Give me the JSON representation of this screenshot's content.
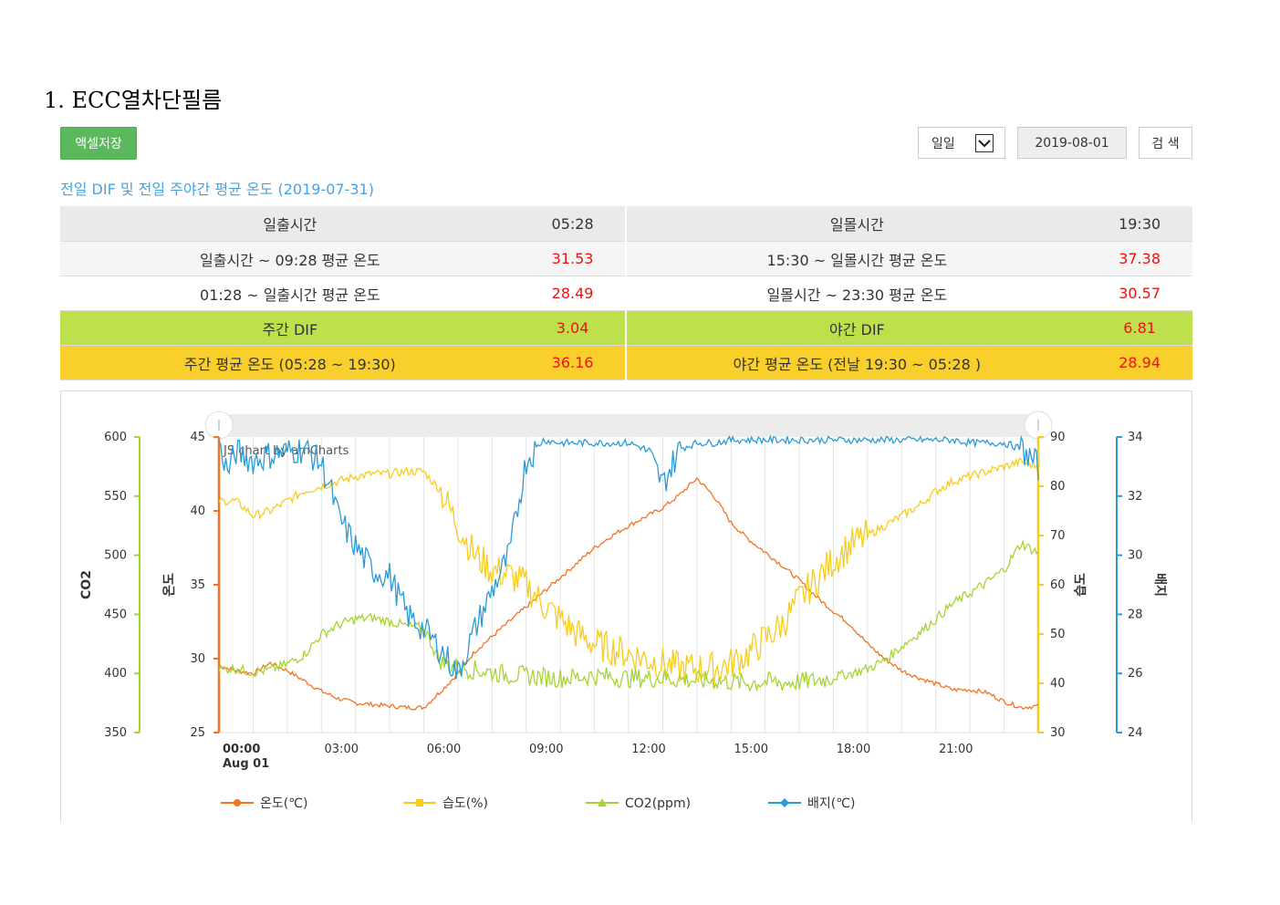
{
  "heading": "1.  ECC열차단필름",
  "toolbar": {
    "excel_label": "액셀저장",
    "period_value": "일일",
    "date_value": "2019-08-01",
    "search_label": "검 색"
  },
  "subtitle": "전일 DIF 및 전일 주야간 평균 온도 (2019-07-31)",
  "summary": {
    "rows": [
      {
        "l1": "일출시간",
        "v1": "05:28",
        "l2": "일몰시간",
        "v2": "19:30"
      },
      {
        "l1": "일출시간 ~ 09:28 평균 온도",
        "v1": "31.53",
        "l2": "15:30 ~ 일몰시간 평균 온도",
        "v2": "37.38"
      },
      {
        "l1": "01:28 ~ 일출시간 평균 온도",
        "v1": "28.49",
        "l2": "일몰시간 ~ 23:30 평균 온도",
        "v2": "30.57"
      },
      {
        "l1": "주간 DIF",
        "v1": "3.04",
        "l2": "야간 DIF",
        "v2": "6.81"
      },
      {
        "l1": "주간 평균 온도 (05:28 ~ 19:30)",
        "v1": "36.16",
        "l2": "야간 평균 온도 (전날 19:30 ~ 05:28 )",
        "v2": "28.94"
      }
    ]
  },
  "colors": {
    "temp": "#f47321",
    "humidity": "#f8cc1b",
    "co2": "#a6d430",
    "media": "#2a9bd6",
    "accent": "#4aa3df",
    "excel_button": "#5cb85c"
  },
  "chart_data": {
    "type": "line",
    "watermark": "JS chart by amCharts",
    "x_ticks": [
      "00:00",
      "03:00",
      "06:00",
      "09:00",
      "12:00",
      "15:00",
      "18:00",
      "21:00"
    ],
    "x_date_label": "Aug 01",
    "axes": {
      "co2": {
        "label": "CO2",
        "range": [
          350,
          600
        ],
        "ticks": [
          "600",
          "550",
          "500",
          "450",
          "400",
          "350"
        ]
      },
      "temp": {
        "label": "온도",
        "range": [
          25,
          45
        ],
        "ticks": [
          "45",
          "40",
          "35",
          "30",
          "25"
        ]
      },
      "humidity": {
        "label": "습도",
        "range": [
          30,
          90
        ],
        "ticks": [
          "90",
          "80",
          "70",
          "60",
          "50",
          "40",
          "30"
        ]
      },
      "media": {
        "label": "배지",
        "range": [
          24,
          34
        ],
        "ticks": [
          "34",
          "32",
          "30",
          "28",
          "26",
          "24"
        ]
      }
    },
    "series": [
      {
        "name": "온도(℃)",
        "axis": "temp",
        "color": "#f47321",
        "x": [
          0,
          0.5,
          1,
          1.5,
          2,
          2.5,
          3,
          3.5,
          4,
          4.5,
          5,
          5.5,
          6,
          6.5,
          7,
          7.5,
          8,
          8.5,
          9,
          9.5,
          10,
          10.5,
          11,
          11.5,
          12,
          12.5,
          13,
          13.5,
          14,
          14.5,
          15,
          15.5,
          16,
          16.5,
          17,
          17.5,
          18,
          18.5,
          19,
          19.5,
          20,
          20.5,
          21,
          21.5,
          22,
          22.5,
          23,
          23.5,
          24
        ],
        "y": [
          29.5,
          29.2,
          29.0,
          29.7,
          29.2,
          28.5,
          27.8,
          27.3,
          27.0,
          26.9,
          26.8,
          26.7,
          26.7,
          27.8,
          29.0,
          30.5,
          31.5,
          32.5,
          33.5,
          34.5,
          35.5,
          36.5,
          37.5,
          38.3,
          39.0,
          39.6,
          40.2,
          41.1,
          42.2,
          41.0,
          39.2,
          38.1,
          37.2,
          36.3,
          35.3,
          34.2,
          33.2,
          32.3,
          31.0,
          30.0,
          29.2,
          28.7,
          28.3,
          27.9,
          27.9,
          27.7,
          27.1,
          26.7,
          26.8
        ]
      },
      {
        "name": "습도(%)",
        "axis": "humidity",
        "color": "#f8cc1b",
        "x": [
          0,
          0.5,
          1,
          1.5,
          2,
          2.5,
          3,
          3.5,
          4,
          4.5,
          5,
          5.5,
          6,
          6.5,
          7,
          7.5,
          8,
          8.5,
          9,
          9.5,
          10,
          10.5,
          11,
          11.5,
          12,
          12.5,
          13,
          13.5,
          14,
          14.5,
          15,
          15.5,
          16,
          16.5,
          17,
          17.5,
          18,
          18.5,
          19,
          19.5,
          20,
          20.5,
          21,
          21.5,
          22,
          22.5,
          23,
          23.5,
          24
        ],
        "y": [
          77,
          77,
          74,
          75,
          77,
          79,
          80,
          81,
          82,
          82.5,
          82.5,
          83,
          83,
          79,
          72,
          66,
          63,
          62,
          60,
          56,
          53,
          50,
          48,
          47,
          46,
          45,
          44,
          43,
          43,
          43,
          44,
          46,
          49,
          52,
          57,
          61,
          65,
          68,
          70,
          72,
          74,
          76,
          79,
          81,
          82,
          83,
          84,
          85,
          84
        ]
      },
      {
        "name": "CO2(ppm)",
        "axis": "co2",
        "color": "#a6d430",
        "x": [
          0,
          0.5,
          1,
          1.5,
          2,
          2.5,
          3,
          3.5,
          4,
          4.5,
          5,
          5.5,
          6,
          6.5,
          7,
          7.5,
          8,
          8.5,
          9,
          9.5,
          10,
          10.5,
          11,
          11.5,
          12,
          12.5,
          13,
          13.5,
          14,
          14.5,
          15,
          15.5,
          16,
          16.5,
          17,
          17.5,
          18,
          18.5,
          19,
          19.5,
          20,
          20.5,
          21,
          21.5,
          22,
          22.5,
          23,
          23.5,
          24
        ],
        "y": [
          404,
          404,
          401,
          403,
          408,
          416,
          433,
          441,
          446,
          447,
          444,
          440,
          439,
          409,
          405,
          403,
          401,
          399,
          398,
          397,
          396,
          397,
          398,
          397,
          396,
          396,
          396,
          395,
          394,
          394,
          393,
          392,
          393,
          392,
          393,
          394,
          397,
          400,
          404,
          411,
          423,
          434,
          446,
          459,
          468,
          477,
          488,
          510,
          502
        ]
      },
      {
        "name": "배지(℃)",
        "axis": "media",
        "color": "#2a9bd6",
        "x": [
          0,
          0.25,
          0.5,
          1,
          1.5,
          2,
          2.5,
          3,
          3.25,
          3.5,
          4,
          4.5,
          5,
          5.5,
          6,
          6.5,
          7,
          7.5,
          8,
          8.5,
          9,
          9.5,
          10,
          10.5,
          11,
          11.5,
          12,
          12.5,
          13,
          13.5,
          14,
          14.5,
          15,
          15.5,
          16,
          16.5,
          17,
          17.5,
          18,
          18.5,
          19,
          19.5,
          20,
          20.5,
          21,
          21.5,
          22,
          22.5,
          23,
          23.5,
          24
        ],
        "y": [
          33.9,
          32.8,
          33.5,
          33.2,
          33.4,
          33.5,
          33.6,
          33.1,
          32.3,
          31.3,
          30.3,
          29.5,
          29.3,
          28.0,
          27.5,
          26.8,
          26.0,
          27.5,
          28.8,
          30.0,
          33.2,
          33.9,
          33.8,
          33.8,
          33.8,
          33.8,
          33.8,
          33.6,
          32.4,
          33.6,
          33.8,
          33.8,
          33.9,
          33.9,
          33.9,
          33.9,
          33.9,
          33.9,
          33.9,
          33.9,
          33.9,
          33.9,
          33.9,
          33.9,
          33.9,
          33.9,
          33.8,
          33.8,
          33.8,
          33.6,
          33.0
        ]
      }
    ]
  }
}
